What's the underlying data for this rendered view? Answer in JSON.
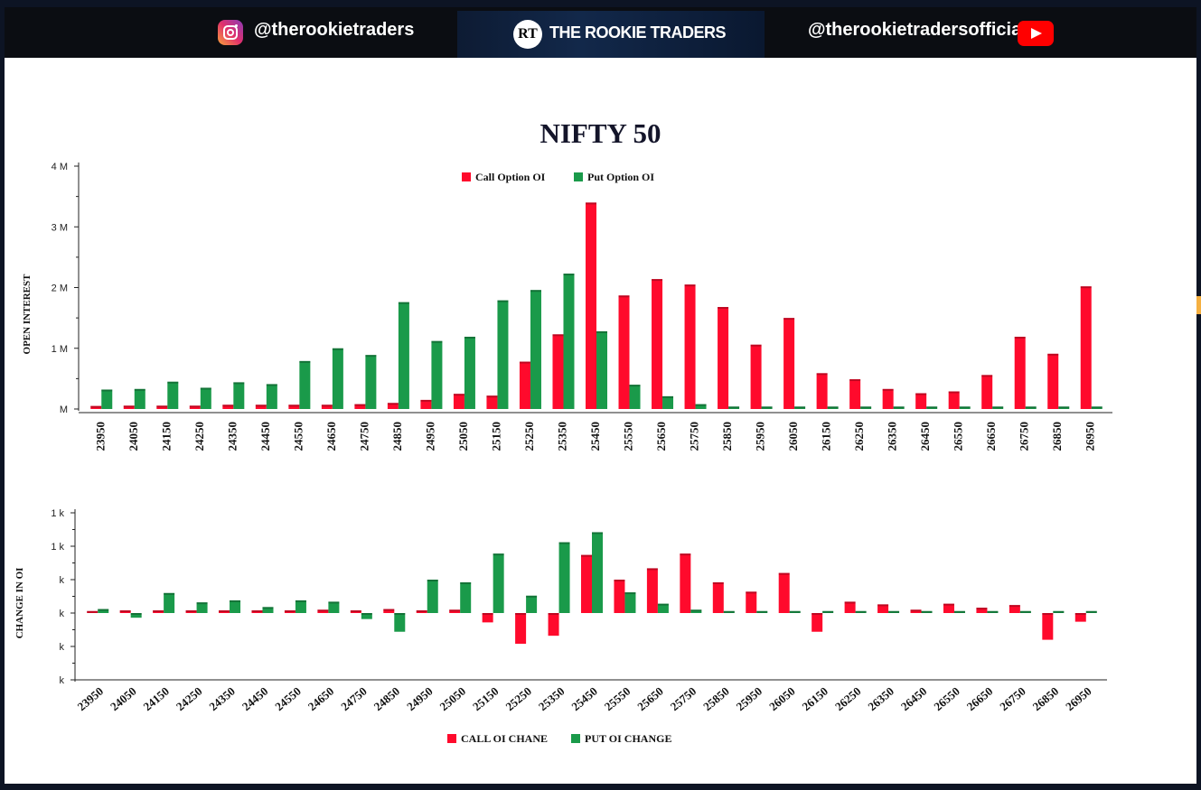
{
  "banner": {
    "instagram_handle": "@therookietraders",
    "brand_mark": "RT",
    "brand_name": "THE ROOKIE TRADERS",
    "youtube_handle": "@therookietradersofficial",
    "instagram_icon": "instagram-icon",
    "youtube_icon": "youtube-icon"
  },
  "colors": {
    "call": "#ff0a2c",
    "put": "#1a9a4a",
    "background": "#0d1424"
  },
  "chart_data": [
    {
      "type": "bar",
      "title": "NIFTY 50",
      "ylabel": "OPEN INTEREST",
      "xlabel": "",
      "legend_position": "top-center",
      "ylim": [
        0,
        4000000
      ],
      "yticks": [
        {
          "value": 0,
          "label": "M"
        },
        {
          "value": 1000000,
          "label": "1 M"
        },
        {
          "value": 2000000,
          "label": "2 M"
        },
        {
          "value": 3000000,
          "label": "3 M"
        },
        {
          "value": 4000000,
          "label": "4 M"
        }
      ],
      "categories": [
        "23950",
        "24050",
        "24150",
        "24250",
        "24350",
        "24450",
        "24550",
        "24650",
        "24750",
        "24850",
        "24950",
        "25050",
        "25150",
        "25250",
        "25350",
        "25450",
        "25550",
        "25650",
        "25750",
        "25850",
        "25950",
        "26050",
        "26150",
        "26250",
        "26350",
        "26450",
        "26550",
        "26650",
        "26750",
        "26850",
        "26950"
      ],
      "series": [
        {
          "name": "Call Option OI",
          "color": "#ff0a2c",
          "values": [
            50000,
            55000,
            55000,
            55000,
            70000,
            70000,
            70000,
            70000,
            80000,
            100000,
            150000,
            250000,
            220000,
            780000,
            1230000,
            3400000,
            1870000,
            2140000,
            2050000,
            1680000,
            1060000,
            1500000,
            590000,
            490000,
            330000,
            260000,
            290000,
            560000,
            1190000,
            910000,
            2020000
          ]
        },
        {
          "name": "Put Option OI",
          "color": "#1a9a4a",
          "values": [
            320000,
            330000,
            450000,
            350000,
            440000,
            410000,
            790000,
            1000000,
            890000,
            1760000,
            1120000,
            1190000,
            1790000,
            1960000,
            2230000,
            1280000,
            400000,
            210000,
            80000,
            40000,
            40000,
            40000,
            40000,
            40000,
            40000,
            40000,
            40000,
            40000,
            40000,
            40000,
            40000
          ]
        }
      ]
    },
    {
      "type": "bar",
      "title": "",
      "ylabel": "CHANGE IN OI",
      "xlabel": "",
      "legend_position": "bottom-center",
      "ylim": [
        -1000,
        1500
      ],
      "yticks": [
        {
          "value": -1000,
          "label": "k"
        },
        {
          "value": -500,
          "label": "k"
        },
        {
          "value": 0,
          "label": "k"
        },
        {
          "value": 500,
          "label": "k"
        },
        {
          "value": 1000,
          "label": "1 k"
        },
        {
          "value": 1500,
          "label": "1 k"
        }
      ],
      "categories": [
        "23950",
        "24050",
        "24150",
        "24250",
        "24350",
        "24450",
        "24550",
        "24650",
        "24750",
        "24850",
        "24950",
        "25050",
        "25150",
        "25250",
        "25350",
        "25450",
        "25550",
        "25650",
        "25750",
        "25850",
        "25950",
        "26050",
        "26150",
        "26250",
        "26350",
        "26450",
        "26550",
        "26650",
        "26750",
        "26850",
        "26950"
      ],
      "series": [
        {
          "name": "CALL OI CHANE",
          "color": "#ff0a2c",
          "values": [
            30,
            40,
            40,
            40,
            40,
            40,
            40,
            50,
            40,
            60,
            40,
            50,
            -140,
            -460,
            -340,
            870,
            500,
            670,
            890,
            460,
            320,
            600,
            -280,
            170,
            130,
            50,
            140,
            80,
            120,
            -400,
            -130
          ]
        },
        {
          "name": "PUT OI CHANGE",
          "color": "#1a9a4a",
          "values": [
            60,
            -70,
            300,
            160,
            190,
            90,
            190,
            170,
            -90,
            -280,
            500,
            460,
            890,
            260,
            1060,
            1210,
            310,
            140,
            50,
            30,
            30,
            30,
            30,
            30,
            30,
            30,
            30,
            30,
            30,
            30,
            30
          ]
        }
      ]
    }
  ]
}
